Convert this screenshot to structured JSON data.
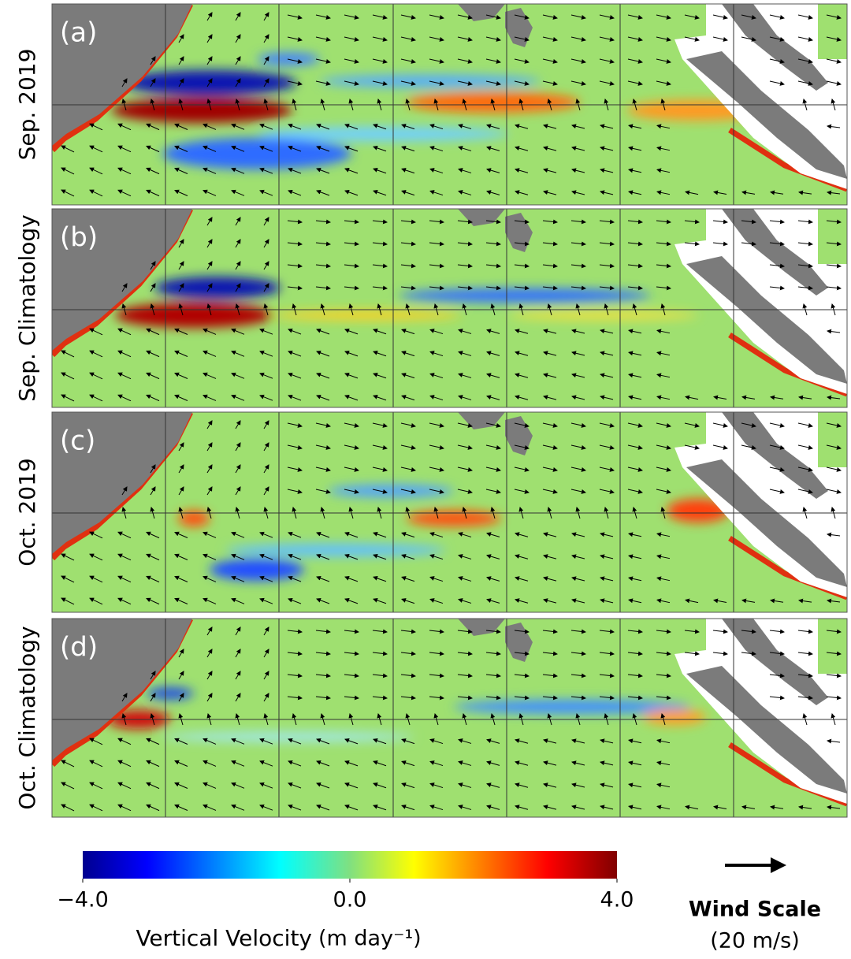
{
  "panels": [
    {
      "label": "(a)",
      "title": "Sep. 2019"
    },
    {
      "label": "(b)",
      "title": "Sep. Climatology"
    },
    {
      "label": "(c)",
      "title": "Oct. 2019"
    },
    {
      "label": "(d)",
      "title": "Oct. Climatology"
    }
  ],
  "colorbar": {
    "label": "Vertical Velocity",
    "unit": "(m day⁻¹)",
    "lim": [
      -4,
      4
    ],
    "ticks": [
      {
        "value": -4,
        "label": "−4.0"
      },
      {
        "value": 0,
        "label": "0.0"
      },
      {
        "value": 4,
        "label": "4.0"
      }
    ]
  },
  "wind_scale": {
    "title": "Wind Scale",
    "label": "(20 m/s)"
  }
}
